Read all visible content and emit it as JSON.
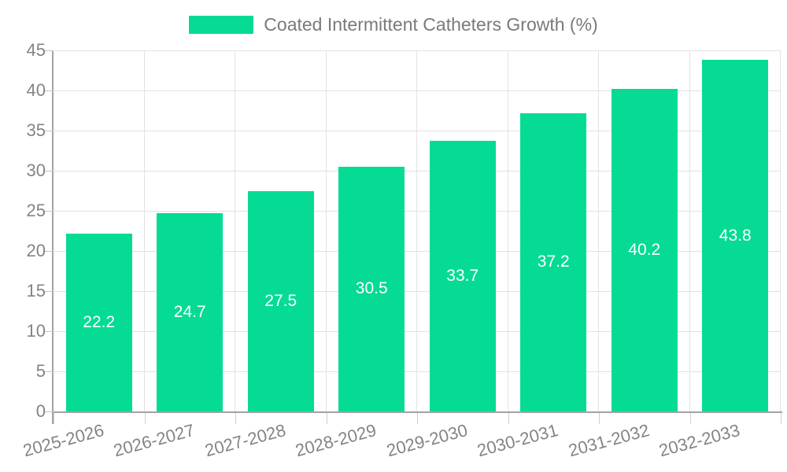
{
  "legend": {
    "label": "Coated Intermittent Catheters Growth (%)"
  },
  "chart_data": {
    "type": "bar",
    "title": "Coated Intermittent Catheters Growth (%)",
    "categories": [
      "2025-2026",
      "2026-2027",
      "2027-2028",
      "2028-2029",
      "2029-2030",
      "2030-2031",
      "2031-2032",
      "2032-2033"
    ],
    "values": [
      22.2,
      24.7,
      27.5,
      30.5,
      33.7,
      37.2,
      40.2,
      43.8
    ],
    "value_label_decimals": 1,
    "xlabel": "",
    "ylabel": "",
    "ylim": [
      0,
      45
    ],
    "ytick_step": 5,
    "yticks": [
      0,
      5,
      10,
      15,
      20,
      25,
      30,
      35,
      40,
      45
    ],
    "grid": true,
    "legend_position": "top-center",
    "value_label_position": "inside-center",
    "colors": {
      "bar": "#05db94",
      "value_label": "#ffffff",
      "axis_line": "#a3a3a3",
      "grid_line": "#e2e2e2",
      "y_tick_line": "#c6c6c6",
      "x_tick_line": "#cfcfcf",
      "axis_text": "#848484",
      "legend_text": "#7a7a7a",
      "background": "#ffffff"
    }
  }
}
